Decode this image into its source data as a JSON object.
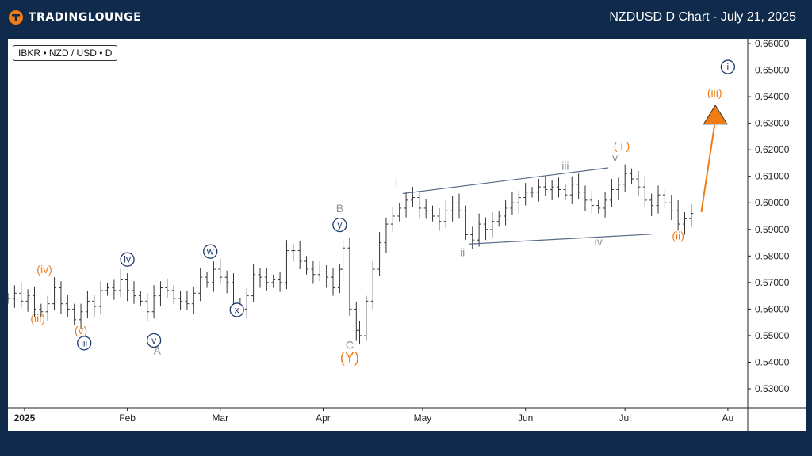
{
  "brand": {
    "name": "TradingLounge",
    "logo_text": "TRADINGLOUNGE"
  },
  "header": {
    "title": "NZDUSD D Chart - July 21, 2025"
  },
  "symbol": {
    "label": "IBKR • NZD / USD • D"
  },
  "colors": {
    "orange": "#f07c16",
    "navy": "#1c3a6e",
    "gray": "#8a8f97",
    "channel": "#5a6a8a",
    "candle": "#333333"
  },
  "chart_data": {
    "type": "line",
    "title": "NZDUSD D Chart - July 21, 2025",
    "instrument": "NZD/USD",
    "timeframe": "D",
    "ylim": [
      0.522,
      0.66
    ],
    "y_ticks": [
      0.53,
      0.54,
      0.55,
      0.56,
      0.57,
      0.58,
      0.59,
      0.6,
      0.61,
      0.62,
      0.63,
      0.64,
      0.65,
      0.66
    ],
    "y_tick_labels": [
      "0.53000",
      "0.54000",
      "0.55000",
      "0.56000",
      "0.57000",
      "0.58000",
      "0.59000",
      "0.60000",
      "0.61000",
      "0.62000",
      "0.63000",
      "0.64000",
      "0.65000",
      "0.66000"
    ],
    "x_ticks": [
      {
        "label": "2025",
        "day": 0,
        "bold": true
      },
      {
        "label": "Feb",
        "day": 31
      },
      {
        "label": "Mar",
        "day": 59
      },
      {
        "label": "Apr",
        "day": 90
      },
      {
        "label": "May",
        "day": 120
      },
      {
        "label": "Jun",
        "day": 151
      },
      {
        "label": "Jul",
        "day": 181
      },
      {
        "label": "Au",
        "day": 212
      }
    ],
    "xlim": [
      -5,
      218
    ],
    "close_series": [
      [
        -5,
        0.564
      ],
      [
        -3,
        0.566
      ],
      [
        -1,
        0.563
      ],
      [
        1,
        0.565
      ],
      [
        3,
        0.56
      ],
      [
        5,
        0.559
      ],
      [
        7,
        0.562
      ],
      [
        9,
        0.568
      ],
      [
        11,
        0.562
      ],
      [
        13,
        0.56
      ],
      [
        15,
        0.556
      ],
      [
        17,
        0.559
      ],
      [
        19,
        0.563
      ],
      [
        21,
        0.561
      ],
      [
        23,
        0.567
      ],
      [
        25,
        0.568
      ],
      [
        27,
        0.567
      ],
      [
        29,
        0.571
      ],
      [
        31,
        0.567
      ],
      [
        33,
        0.565
      ],
      [
        35,
        0.563
      ],
      [
        37,
        0.559
      ],
      [
        39,
        0.565
      ],
      [
        41,
        0.568
      ],
      [
        43,
        0.567
      ],
      [
        45,
        0.564
      ],
      [
        47,
        0.563
      ],
      [
        49,
        0.562
      ],
      [
        51,
        0.566
      ],
      [
        53,
        0.572
      ],
      [
        55,
        0.57
      ],
      [
        57,
        0.575
      ],
      [
        59,
        0.572
      ],
      [
        61,
        0.57
      ],
      [
        63,
        0.562
      ],
      [
        65,
        0.56
      ],
      [
        67,
        0.565
      ],
      [
        69,
        0.573
      ],
      [
        71,
        0.572
      ],
      [
        73,
        0.57
      ],
      [
        75,
        0.571
      ],
      [
        77,
        0.57
      ],
      [
        79,
        0.582
      ],
      [
        81,
        0.582
      ],
      [
        83,
        0.578
      ],
      [
        85,
        0.575
      ],
      [
        87,
        0.573
      ],
      [
        89,
        0.574
      ],
      [
        91,
        0.572
      ],
      [
        93,
        0.568
      ],
      [
        95,
        0.575
      ],
      [
        96,
        0.583
      ],
      [
        98,
        0.56
      ],
      [
        100,
        0.552
      ],
      [
        101,
        0.55
      ],
      [
        103,
        0.563
      ],
      [
        105,
        0.575
      ],
      [
        107,
        0.585
      ],
      [
        109,
        0.592
      ],
      [
        111,
        0.595
      ],
      [
        113,
        0.598
      ],
      [
        115,
        0.601
      ],
      [
        117,
        0.602
      ],
      [
        119,
        0.598
      ],
      [
        121,
        0.597
      ],
      [
        123,
        0.595
      ],
      [
        125,
        0.593
      ],
      [
        127,
        0.597
      ],
      [
        129,
        0.6
      ],
      [
        131,
        0.597
      ],
      [
        133,
        0.588
      ],
      [
        135,
        0.586
      ],
      [
        137,
        0.592
      ],
      [
        139,
        0.59
      ],
      [
        141,
        0.593
      ],
      [
        143,
        0.595
      ],
      [
        145,
        0.598
      ],
      [
        147,
        0.6
      ],
      [
        149,
        0.602
      ],
      [
        151,
        0.604
      ],
      [
        153,
        0.604
      ],
      [
        155,
        0.606
      ],
      [
        157,
        0.605
      ],
      [
        159,
        0.606
      ],
      [
        161,
        0.605
      ],
      [
        163,
        0.603
      ],
      [
        165,
        0.607
      ],
      [
        167,
        0.604
      ],
      [
        169,
        0.601
      ],
      [
        171,
        0.599
      ],
      [
        173,
        0.598
      ],
      [
        175,
        0.601
      ],
      [
        177,
        0.605
      ],
      [
        179,
        0.607
      ],
      [
        181,
        0.611
      ],
      [
        183,
        0.609
      ],
      [
        185,
        0.606
      ],
      [
        187,
        0.601
      ],
      [
        189,
        0.599
      ],
      [
        191,
        0.603
      ],
      [
        193,
        0.6
      ],
      [
        195,
        0.597
      ],
      [
        197,
        0.592
      ],
      [
        199,
        0.594
      ],
      [
        201,
        0.596
      ]
    ],
    "dotted_level": 0.65,
    "channel": {
      "upper": [
        [
          114,
          0.6035
        ],
        [
          176,
          0.6132
        ]
      ],
      "lower": [
        [
          134,
          0.5845
        ],
        [
          189,
          0.5882
        ]
      ]
    },
    "projection": {
      "from": [
        204,
        0.5965
      ],
      "to": [
        208,
        0.6335
      ]
    },
    "labels": [
      {
        "text": "(iv)",
        "day": 6,
        "y": 0.5735,
        "color": "orange"
      },
      {
        "text": "(iii)",
        "day": 4,
        "y": 0.555,
        "color": "orange"
      },
      {
        "text": "(v)",
        "day": 17,
        "y": 0.5505,
        "color": "orange"
      },
      {
        "text": "iii",
        "day": 18,
        "y": 0.546,
        "color": "navy",
        "circle": true
      },
      {
        "text": "iv",
        "day": 31,
        "y": 0.5775,
        "color": "navy",
        "circle": true
      },
      {
        "text": "v",
        "day": 39,
        "y": 0.547,
        "color": "navy",
        "circle": true
      },
      {
        "text": "A",
        "day": 40,
        "y": 0.543,
        "color": "gray"
      },
      {
        "text": "w",
        "day": 56,
        "y": 0.5805,
        "color": "navy",
        "circle": true
      },
      {
        "text": "x",
        "day": 64,
        "y": 0.5585,
        "color": "navy",
        "circle": true
      },
      {
        "text": "B",
        "day": 95,
        "y": 0.5965,
        "color": "gray"
      },
      {
        "text": "y",
        "day": 95,
        "y": 0.5905,
        "color": "navy",
        "circle": true
      },
      {
        "text": "C",
        "day": 98,
        "y": 0.545,
        "color": "gray"
      },
      {
        "text": "(Y)",
        "day": 98,
        "y": 0.54,
        "color": "orange",
        "big": true
      },
      {
        "text": "i",
        "day": 112,
        "y": 0.6065,
        "color": "gray"
      },
      {
        "text": "ii",
        "day": 132,
        "y": 0.58,
        "color": "gray"
      },
      {
        "text": "iii",
        "day": 163,
        "y": 0.6125,
        "color": "gray"
      },
      {
        "text": "iv",
        "day": 173,
        "y": 0.584,
        "color": "gray"
      },
      {
        "text": "v",
        "day": 178,
        "y": 0.6155,
        "color": "gray"
      },
      {
        "text": "( i )",
        "day": 180,
        "y": 0.62,
        "color": "orange"
      },
      {
        "text": "(ii)",
        "day": 197,
        "y": 0.5862,
        "color": "orange"
      },
      {
        "text": "(iii)",
        "day": 208,
        "y": 0.64,
        "color": "orange"
      },
      {
        "text": "i",
        "day": 212,
        "y": 0.65,
        "color": "navy",
        "circle": true
      }
    ]
  }
}
